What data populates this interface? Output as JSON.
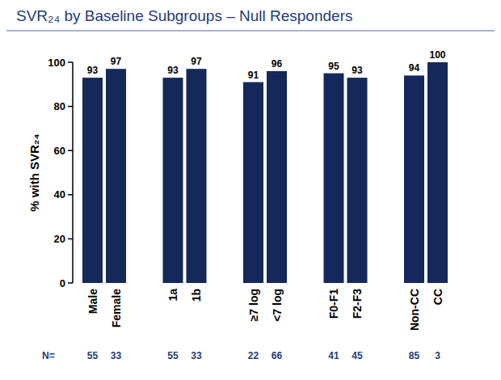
{
  "chart_data": {
    "type": "bar",
    "title": "SVR₂₄ by Baseline Subgroups – Null Responders",
    "y_label": "% with SVR₂₄",
    "categories": [
      "Male",
      "Female",
      "1a",
      "1b",
      "≥7 log",
      "<7 log",
      "F0-F1",
      "F2-F3",
      "Non-CC",
      "CC"
    ],
    "values": [
      93,
      97,
      93,
      97,
      91,
      96,
      95,
      93,
      94,
      100
    ],
    "counts_label": "N=",
    "counts": [
      55,
      33,
      55,
      33,
      22,
      66,
      41,
      45,
      85,
      3
    ],
    "color": "#14285a",
    "ylim": [
      0,
      100
    ],
    "yticks": [
      0,
      20,
      40,
      60,
      80,
      100
    ],
    "grid": false,
    "data_labels": true
  }
}
